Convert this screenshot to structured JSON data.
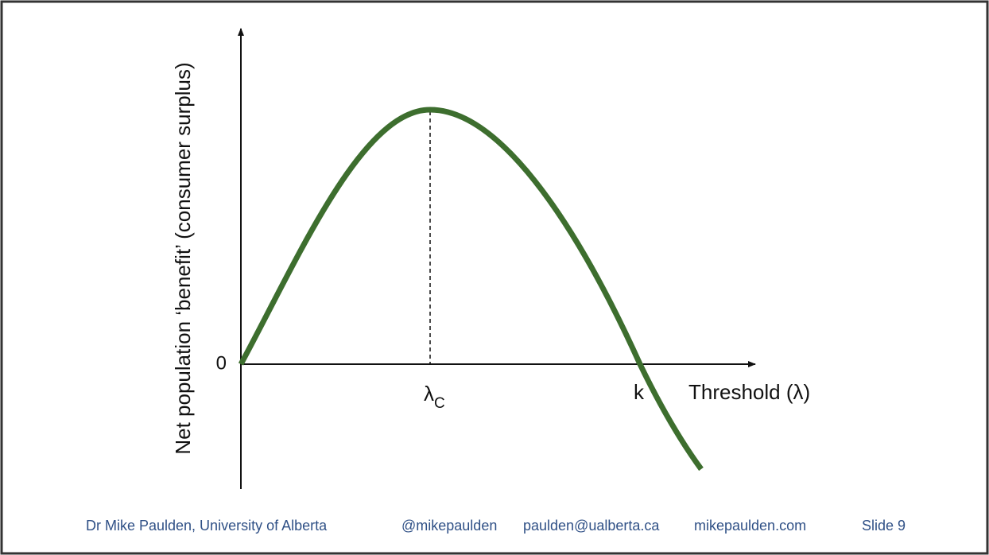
{
  "axes": {
    "y_label": "Net population ‘benefit’ (consumer surplus)",
    "origin_label": "0",
    "x_label": "Threshold (λ)"
  },
  "labels": {
    "lambda_c": {
      "symbol": "λ",
      "subscript": "C"
    },
    "k": "k"
  },
  "footer": {
    "author": "Dr Mike Paulden,  University of Alberta",
    "twitter": "@mikepaulden",
    "email": "paulden@ualberta.ca",
    "website": "mikepaulden.com",
    "slide": "Slide 9"
  }
}
